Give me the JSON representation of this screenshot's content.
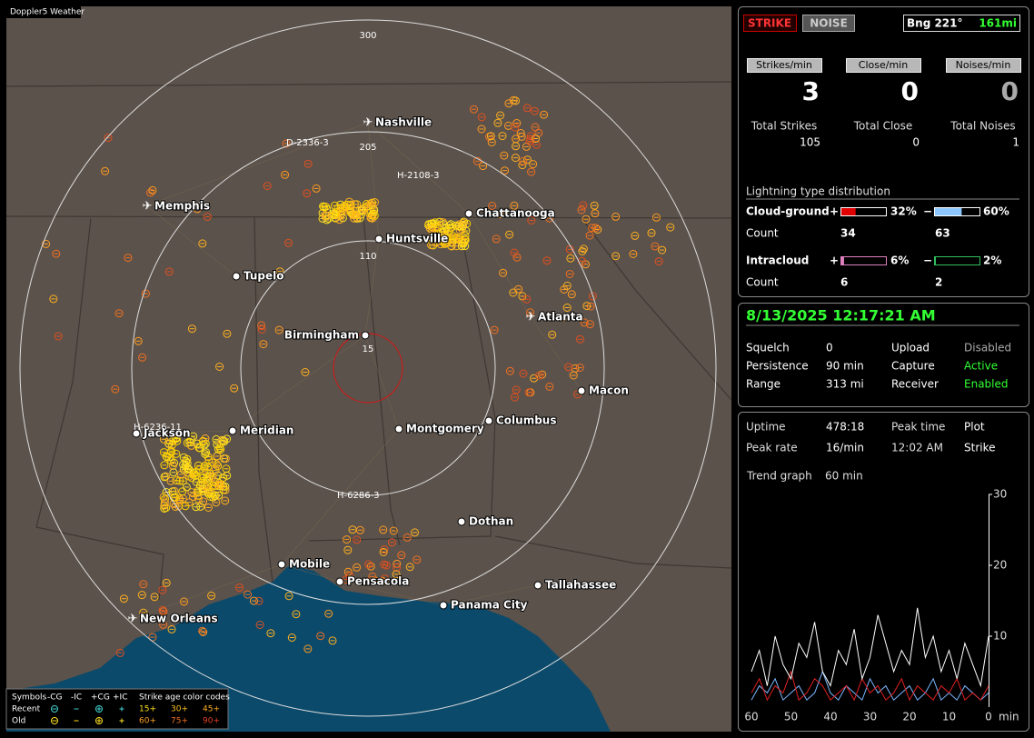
{
  "map": {
    "title": "Doppler5 Weather",
    "rings": [
      "300",
      "205",
      "110",
      "15"
    ],
    "cities": [
      "Nashville",
      "Memphis",
      "Chattanooga",
      "Huntsville",
      "Tupelo",
      "Birmingham",
      "Atlanta",
      "Macon",
      "Jackson",
      "Meridian",
      "Montgomery",
      "Columbus",
      "Dothan",
      "Mobile",
      "Pensacola",
      "Tallahassee",
      "Panama City",
      "New Orleans"
    ],
    "storms": [
      "D-2336-3",
      "H-2108-3",
      "H-6236-11",
      "H-6286-3"
    ],
    "legend": {
      "symbols": "Symbols",
      "types": [
        "-CG",
        "-IC",
        "+CG",
        "+IC"
      ],
      "age": "Strike age color codes",
      "rows": [
        "Recent",
        "Old"
      ],
      "recent_ages": [
        "15+",
        "30+",
        "45+"
      ],
      "old_ages": [
        "60+",
        "75+",
        "90+"
      ]
    }
  },
  "header": {
    "strike": "STRIKE",
    "noise": "NOISE",
    "bearing": "Bng 221°",
    "distance": "161mi"
  },
  "rates": [
    {
      "label": "Strikes/min",
      "value": 3,
      "total_label": "Total Strikes",
      "total": 105
    },
    {
      "label": "Close/min",
      "value": 0,
      "total_label": "Total Close",
      "total": 0
    },
    {
      "label": "Noises/min",
      "value": 0,
      "total_label": "Total Noises",
      "total": 1
    }
  ],
  "distribution": {
    "title": "Lightning type distribution",
    "count_label": "Count",
    "signs": [
      "+",
      "−"
    ],
    "types": [
      {
        "name": "Cloud-ground",
        "positive": {
          "value": 32,
          "label": "32%"
        },
        "negative": {
          "value": 60,
          "label": "60%"
        },
        "positive_count": 34,
        "negative_count": 63
      },
      {
        "name": "Intracloud",
        "positive": {
          "value": 6,
          "label": "6%"
        },
        "negative": {
          "value": 2,
          "label": "2%"
        },
        "positive_count": 6,
        "negative_count": 2
      }
    ]
  },
  "status": {
    "datetime": "8/13/2025 12:17:21 AM",
    "rows": [
      [
        "Squelch",
        "0",
        "Upload",
        "Disabled"
      ],
      [
        "Persistence",
        "90 min",
        "Capture",
        "Active"
      ],
      [
        "Range",
        "313 mi",
        "Receiver",
        "Enabled"
      ]
    ]
  },
  "stats": {
    "rows": [
      [
        "Uptime",
        "478:18",
        "Peak time",
        "Plot"
      ],
      [
        "Peak rate",
        "16/min",
        "12:02 AM",
        "Strike"
      ]
    ],
    "trend_label": "Trend graph",
    "trend_window": "60 min"
  },
  "trend": {
    "x": [
      60,
      58,
      56,
      54,
      52,
      50,
      48,
      46,
      44,
      42,
      40,
      38,
      36,
      34,
      32,
      30,
      28,
      26,
      24,
      22,
      20,
      18,
      16,
      14,
      12,
      10,
      8,
      6,
      4,
      2,
      0
    ],
    "xlim": [
      60,
      0
    ],
    "xticks": [
      60,
      50,
      40,
      30,
      20,
      10,
      0
    ],
    "x_unit": "min",
    "ylim": [
      0,
      30
    ],
    "yticks": [
      10,
      20,
      30
    ],
    "series": [
      {
        "color": "#ffffff",
        "values": [
          5,
          8,
          3,
          10,
          6,
          4,
          9,
          7,
          12,
          5,
          3,
          8,
          6,
          11,
          4,
          7,
          13,
          9,
          5,
          8,
          6,
          14,
          7,
          10,
          5,
          8,
          4,
          9,
          6,
          3,
          10
        ]
      },
      {
        "color": "#e02020",
        "values": [
          2,
          4,
          1,
          3,
          2,
          5,
          1,
          2,
          4,
          3,
          1,
          2,
          3,
          1,
          4,
          2,
          3,
          1,
          2,
          4,
          1,
          3,
          2,
          1,
          3,
          2,
          4,
          1,
          2,
          1,
          3
        ]
      },
      {
        "color": "#7ab8ff",
        "values": [
          1,
          3,
          2,
          4,
          1,
          2,
          3,
          1,
          2,
          5,
          2,
          1,
          3,
          2,
          1,
          4,
          2,
          3,
          1,
          2,
          3,
          1,
          2,
          4,
          1,
          2,
          1,
          3,
          2,
          1,
          2
        ]
      }
    ]
  }
}
